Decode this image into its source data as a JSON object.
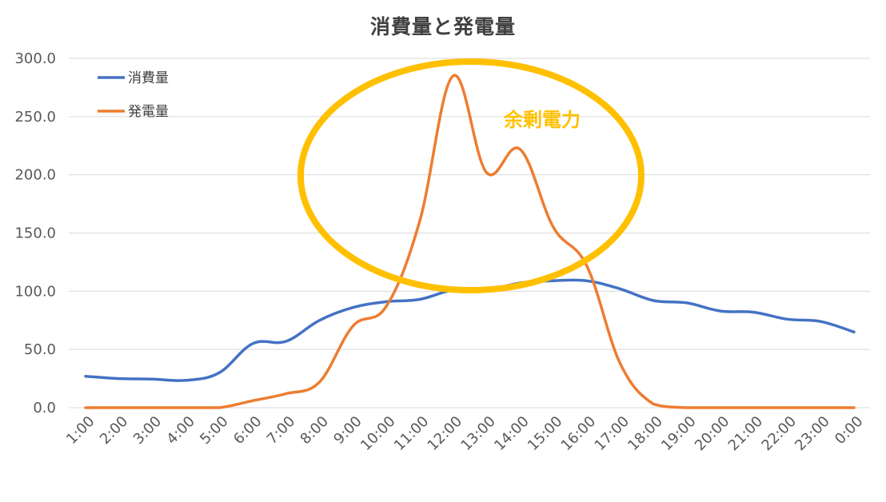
{
  "chart_data": {
    "type": "line",
    "title": "消費量と発電量",
    "xlabel": "",
    "ylabel": "",
    "ylim": [
      0,
      300
    ],
    "yticks": [
      "0.0",
      "50.0",
      "100.0",
      "150.0",
      "200.0",
      "250.0",
      "300.0"
    ],
    "categories": [
      "1:00",
      "2:00",
      "3:00",
      "4:00",
      "5:00",
      "6:00",
      "7:00",
      "8:00",
      "9:00",
      "10:00",
      "11:00",
      "12:00",
      "13:00",
      "14:00",
      "15:00",
      "16:00",
      "17:00",
      "18:00",
      "19:00",
      "20:00",
      "21:00",
      "22:00",
      "23:00",
      "0:00"
    ],
    "series": [
      {
        "name": "消費量",
        "color": "#4472C4",
        "values": [
          27,
          25,
          24.5,
          23.5,
          30,
          55,
          57,
          75,
          86,
          91,
          93,
          101,
          101,
          107,
          109,
          109,
          102,
          92,
          90,
          83,
          82,
          76,
          74,
          65
        ]
      },
      {
        "name": "発電量",
        "color": "#ED7D31",
        "values": [
          0,
          0,
          0,
          0,
          0,
          6,
          12,
          22,
          70,
          87,
          160,
          285,
          202,
          222,
          155,
          122,
          38,
          3,
          0,
          0,
          0,
          0,
          0,
          0
        ]
      }
    ],
    "grid": true,
    "legend_position": "top-left",
    "annotation": {
      "text": "余剰電力",
      "shape": "ellipse",
      "color": "#FFC000"
    }
  }
}
